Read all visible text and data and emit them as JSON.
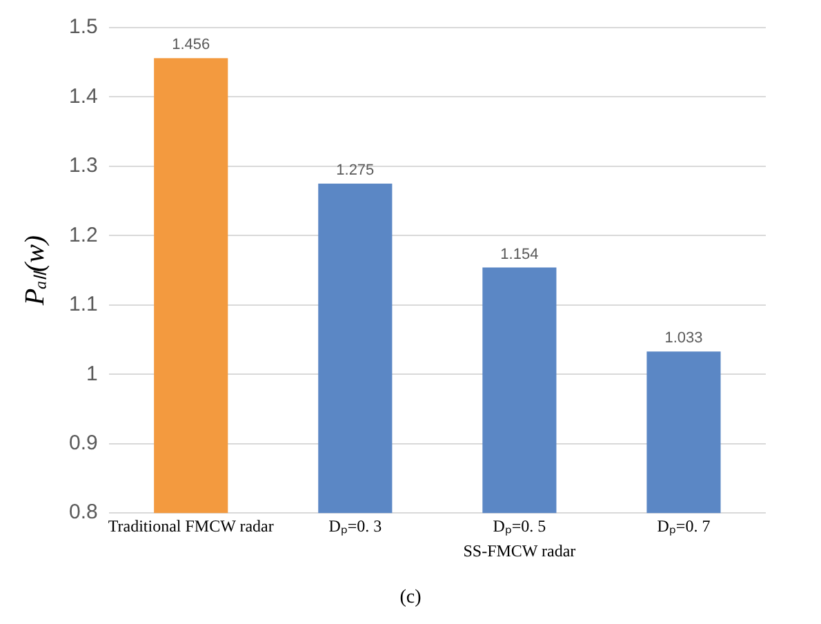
{
  "chart_data": {
    "type": "bar",
    "ylabel": "Pₐₗₗ(w)",
    "categories": [
      "Traditional FMCW radar",
      "Dₚ=0. 3",
      "Dₚ=0. 5",
      "Dₚ=0. 7"
    ],
    "values": [
      1.456,
      1.275,
      1.154,
      1.033
    ],
    "colors": [
      "#f39a3f",
      "#5b87c5",
      "#5b87c5",
      "#5b87c5"
    ],
    "ylim": [
      0.8,
      1.5
    ],
    "yticks": [
      0.8,
      0.9,
      1,
      1.1,
      1.2,
      1.3,
      1.4,
      1.5
    ],
    "grid": "y",
    "data_labels": true,
    "annotations": [
      "SS-FMCW radar",
      "(c)"
    ]
  }
}
